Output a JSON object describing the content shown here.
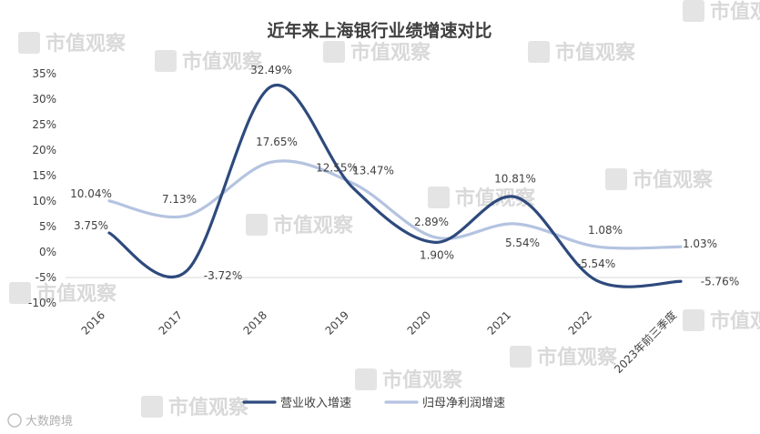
{
  "chart_data": {
    "type": "line",
    "title": "近年来上海银行业绩增速对比",
    "categories": [
      "2016",
      "2017",
      "2018",
      "2019",
      "2020",
      "2021",
      "2022",
      "2023年前三季度"
    ],
    "ylim": [
      -10,
      35
    ],
    "yticks": [
      "35%",
      "30%",
      "25%",
      "20%",
      "15%",
      "10%",
      "5%",
      "0%",
      "-5%",
      "-10%"
    ],
    "ytick_values": [
      35,
      30,
      25,
      20,
      15,
      10,
      5,
      0,
      -5,
      -10
    ],
    "grid": false,
    "legend_position": "bottom",
    "series": [
      {
        "name": "营业收入增速",
        "color": "#2e4a7d",
        "values": [
          3.75,
          -3.72,
          32.49,
          12.55,
          1.9,
          10.81,
          -5.54,
          -5.76
        ],
        "labels": [
          "3.75%",
          "-3.72%",
          "32.49%",
          "12.55%",
          "1.90%",
          "10.81%",
          "-5.54%",
          "-5.76%"
        ]
      },
      {
        "name": "归母净利润增速",
        "color": "#b4c3e0",
        "values": [
          10.04,
          7.13,
          17.65,
          13.47,
          2.89,
          5.54,
          1.08,
          1.03
        ],
        "labels": [
          "10.04%",
          "7.13%",
          "17.65%",
          "13.47%",
          "2.89%",
          "5.54%",
          "1.08%",
          "1.03%"
        ]
      }
    ]
  },
  "watermark": {
    "text": "市值观察",
    "brand": "大数跨境"
  }
}
